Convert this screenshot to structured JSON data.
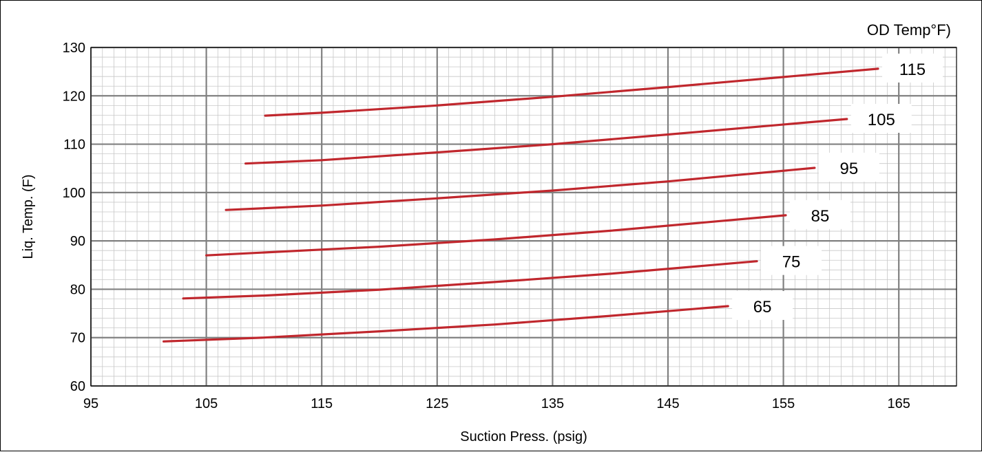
{
  "chart_data": {
    "type": "line",
    "title": "",
    "xlabel": "Suction Press. (psig)",
    "ylabel": "Liq. Temp. (F)",
    "legend_title": "OD Temp°F)",
    "xlim": [
      95,
      170
    ],
    "ylim": [
      60,
      130
    ],
    "x_ticks": [
      95,
      105,
      115,
      125,
      135,
      145,
      155,
      165
    ],
    "y_ticks": [
      60,
      70,
      80,
      90,
      100,
      110,
      120,
      130
    ],
    "grid": true,
    "line_color": "#c0272d",
    "series": [
      {
        "name": "65",
        "x": [
          101.3,
          110,
          120,
          130,
          140,
          150.2
        ],
        "y": [
          69.2,
          70.0,
          71.3,
          72.7,
          74.5,
          76.5
        ]
      },
      {
        "name": "75",
        "x": [
          103.0,
          110,
          120,
          130,
          140,
          152.7
        ],
        "y": [
          78.1,
          78.7,
          79.9,
          81.5,
          83.2,
          85.8
        ]
      },
      {
        "name": "85",
        "x": [
          105.0,
          110,
          120,
          130,
          140,
          155.2
        ],
        "y": [
          87.0,
          87.6,
          88.8,
          90.3,
          92.1,
          95.3
        ]
      },
      {
        "name": "95",
        "x": [
          106.7,
          115,
          125,
          135,
          145,
          157.7
        ],
        "y": [
          96.4,
          97.3,
          98.8,
          100.4,
          102.3,
          105.1
        ]
      },
      {
        "name": "105",
        "x": [
          108.4,
          115,
          125,
          135,
          145,
          160.5
        ],
        "y": [
          106.0,
          106.7,
          108.3,
          110.0,
          112.0,
          115.2
        ]
      },
      {
        "name": "115",
        "x": [
          110.1,
          115,
          125,
          135,
          145,
          163.2
        ],
        "y": [
          115.9,
          116.5,
          118.0,
          119.8,
          121.8,
          125.6
        ]
      }
    ]
  }
}
